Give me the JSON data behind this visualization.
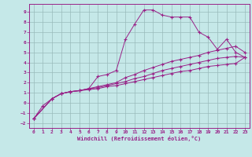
{
  "xlabel": "Windchill (Refroidissement éolien,°C)",
  "xlim": [
    -0.5,
    23.5
  ],
  "ylim": [
    -2.5,
    9.8
  ],
  "yticks": [
    -2,
    -1,
    0,
    1,
    2,
    3,
    4,
    5,
    6,
    7,
    8,
    9
  ],
  "xticks": [
    0,
    1,
    2,
    3,
    4,
    5,
    6,
    7,
    8,
    9,
    10,
    11,
    12,
    13,
    14,
    15,
    16,
    17,
    18,
    19,
    20,
    21,
    22,
    23
  ],
  "bg_color": "#c5e8e8",
  "line_color": "#992288",
  "grid_color": "#99bbbb",
  "lines": [
    {
      "x": [
        0,
        1,
        2,
        3,
        4,
        5,
        6,
        7,
        8,
        9,
        10,
        11,
        12,
        13,
        14,
        15,
        16,
        17,
        18,
        19,
        20,
        21,
        22,
        23
      ],
      "y": [
        -1.6,
        -0.3,
        0.4,
        0.9,
        1.1,
        1.2,
        1.4,
        2.6,
        2.8,
        3.2,
        6.3,
        7.8,
        9.2,
        9.2,
        8.7,
        8.5,
        8.5,
        8.5,
        7.0,
        6.5,
        5.3,
        6.3,
        5.0,
        4.5
      ]
    },
    {
      "x": [
        0,
        2,
        3,
        4,
        5,
        6,
        7,
        8,
        9,
        10,
        11,
        12,
        13,
        14,
        15,
        16,
        17,
        18,
        19,
        20,
        21,
        22,
        23
      ],
      "y": [
        -1.6,
        0.4,
        0.9,
        1.1,
        1.2,
        1.4,
        1.6,
        1.8,
        2.0,
        2.5,
        2.8,
        3.2,
        3.5,
        3.8,
        4.1,
        4.3,
        4.5,
        4.7,
        5.0,
        5.2,
        5.4,
        5.6,
        5.0
      ]
    },
    {
      "x": [
        0,
        2,
        3,
        4,
        5,
        6,
        7,
        8,
        9,
        10,
        11,
        12,
        13,
        14,
        15,
        16,
        17,
        18,
        19,
        20,
        21,
        22,
        23
      ],
      "y": [
        -1.6,
        0.4,
        0.9,
        1.1,
        1.2,
        1.4,
        1.5,
        1.7,
        1.9,
        2.1,
        2.4,
        2.6,
        2.9,
        3.2,
        3.4,
        3.6,
        3.8,
        4.0,
        4.2,
        4.4,
        4.5,
        4.6,
        4.5
      ]
    },
    {
      "x": [
        0,
        2,
        3,
        4,
        5,
        6,
        7,
        8,
        9,
        10,
        11,
        12,
        13,
        14,
        15,
        16,
        17,
        18,
        19,
        20,
        21,
        22,
        23
      ],
      "y": [
        -1.6,
        0.4,
        0.9,
        1.1,
        1.2,
        1.3,
        1.4,
        1.6,
        1.7,
        1.9,
        2.1,
        2.3,
        2.5,
        2.7,
        2.9,
        3.1,
        3.2,
        3.4,
        3.6,
        3.7,
        3.8,
        3.9,
        4.5
      ]
    }
  ]
}
